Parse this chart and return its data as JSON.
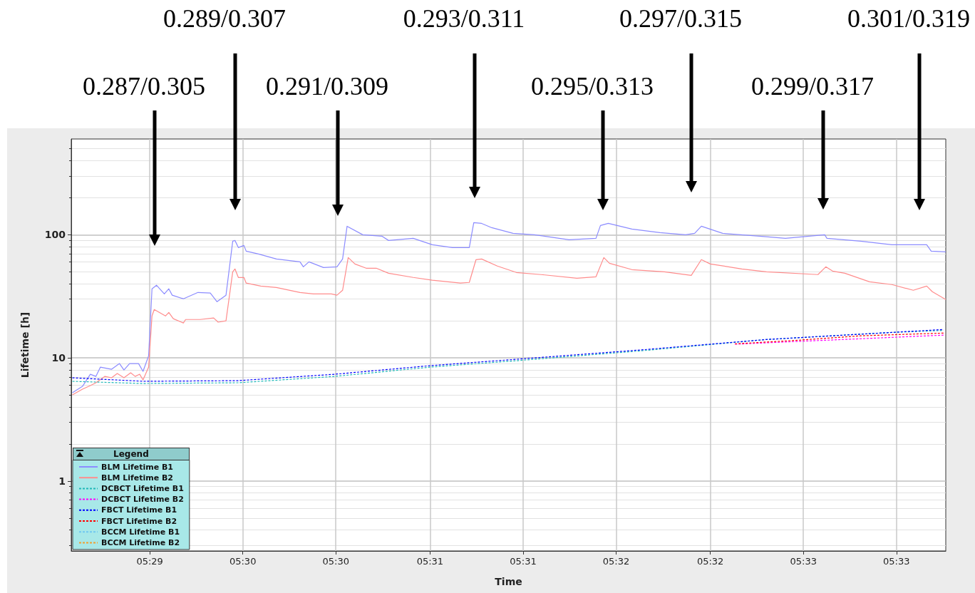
{
  "chart_data": {
    "type": "line",
    "xlabel": "Time",
    "ylabel": "Lifetime [h]",
    "legend_title": "Legend",
    "legend": "bottom left",
    "grid": true,
    "log": "y",
    "marker": "none",
    "xlim": [
      5.4808,
      5.5588
    ],
    "ylim": [
      0.27,
      600
    ],
    "yticks": [
      1,
      10,
      100
    ],
    "xticks": [
      {
        "value": 5.4878,
        "label": "05:29"
      },
      {
        "value": 5.4961,
        "label": "05:30"
      },
      {
        "value": 5.5044,
        "label": "05:30"
      },
      {
        "value": 5.5128,
        "label": "05:31"
      },
      {
        "value": 5.5211,
        "label": "05:31"
      },
      {
        "value": 5.5294,
        "label": "05:32"
      },
      {
        "value": 5.5378,
        "label": "05:32"
      },
      {
        "value": 5.5461,
        "label": "05:33"
      },
      {
        "value": 5.5544,
        "label": "05:33"
      }
    ],
    "annotations": [
      "0.287/0.305",
      "0.289/0.307",
      "0.291/0.309",
      "0.293/0.311",
      "0.295/0.313",
      "0.297/0.315",
      "0.299/0.317",
      "0.301/0.319"
    ],
    "series": [
      {
        "name": "BLM Lifetime B1",
        "color": "#8c8cff",
        "line_style": "solid",
        "x": [
          5.4809,
          5.4818,
          5.4825,
          5.483,
          5.4834,
          5.4844,
          5.4851,
          5.4855,
          5.486,
          5.4868,
          5.4872,
          5.4877,
          5.488,
          5.4884,
          5.4891,
          5.4895,
          5.4898,
          5.4908,
          5.4921,
          5.4932,
          5.4938,
          5.4946,
          5.4952,
          5.4954,
          5.4957,
          5.4962,
          5.4964,
          5.4975,
          5.4991,
          5.5012,
          5.5015,
          5.502,
          5.5033,
          5.5045,
          5.505,
          5.5054,
          5.5068,
          5.5085,
          5.5091,
          5.5113,
          5.513,
          5.5148,
          5.5163,
          5.5167,
          5.5174,
          5.5183,
          5.5202,
          5.5221,
          5.5252,
          5.5276,
          5.528,
          5.5287,
          5.5308,
          5.5333,
          5.5356,
          5.5364,
          5.537,
          5.5389,
          5.5422,
          5.5445,
          5.548,
          5.5482,
          5.5512,
          5.554,
          5.5571,
          5.5575,
          5.5588
        ],
        "values": [
          5.21,
          5.87,
          7.36,
          7.07,
          8.41,
          8.08,
          8.99,
          7.97,
          8.99,
          8.99,
          7.77,
          10.4,
          36.4,
          38.9,
          33.1,
          36.4,
          32.3,
          30.2,
          34.0,
          33.6,
          28.6,
          32.3,
          88.7,
          89.9,
          78.7,
          81.9,
          73.6,
          69.8,
          63.6,
          60.3,
          54.9,
          60.3,
          54.2,
          54.9,
          63.6,
          117.3,
          100,
          97.4,
          89.9,
          93.6,
          83.0,
          78.7,
          78.7,
          125.4,
          123.7,
          114.2,
          102.7,
          100,
          91.1,
          93.6,
          118.9,
          123.7,
          111.2,
          104.1,
          100,
          102.7,
          117.3,
          102.7,
          97.4,
          93.6,
          100,
          93.6,
          88.7,
          83.0,
          83.0,
          73.6,
          72.6
        ]
      },
      {
        "name": "BLM Lifetime B2",
        "color": "#ff8c8c",
        "line_style": "solid",
        "x": [
          5.4809,
          5.4818,
          5.4825,
          5.483,
          5.4838,
          5.4844,
          5.4849,
          5.4855,
          5.4861,
          5.4865,
          5.4869,
          5.4872,
          5.4877,
          5.488,
          5.4882,
          5.4892,
          5.4895,
          5.4899,
          5.4908,
          5.491,
          5.4923,
          5.4935,
          5.4939,
          5.4946,
          5.4952,
          5.4954,
          5.4957,
          5.4962,
          5.4964,
          5.4977,
          5.4991,
          5.5012,
          5.5024,
          5.504,
          5.5045,
          5.505,
          5.5055,
          5.5061,
          5.5071,
          5.508,
          5.5091,
          5.5113,
          5.513,
          5.5155,
          5.5163,
          5.5169,
          5.5174,
          5.5188,
          5.5205,
          5.5227,
          5.5259,
          5.5276,
          5.5283,
          5.5288,
          5.5308,
          5.5337,
          5.5361,
          5.537,
          5.5378,
          5.5406,
          5.5428,
          5.5474,
          5.5481,
          5.5487,
          5.5498,
          5.552,
          5.554,
          5.5559,
          5.5571,
          5.5576,
          5.5588
        ],
        "values": [
          5.0,
          5.57,
          5.95,
          6.28,
          7.07,
          6.89,
          7.46,
          6.89,
          7.56,
          7.07,
          7.36,
          6.62,
          8.41,
          21.9,
          24.7,
          21.9,
          23.4,
          20.8,
          19.2,
          20.5,
          20.5,
          21.1,
          19.5,
          20.0,
          50.0,
          52.8,
          45.0,
          45.0,
          40.5,
          38.3,
          37.3,
          34.0,
          33.1,
          33.1,
          32.3,
          35.4,
          65.3,
          57.9,
          53.5,
          53.5,
          48.7,
          45.0,
          42.7,
          40.5,
          41.0,
          62.8,
          63.6,
          55.7,
          49.4,
          47.5,
          44.4,
          45.6,
          65.3,
          58.7,
          52.1,
          50.0,
          46.8,
          62.8,
          57.9,
          52.8,
          50.0,
          47.5,
          54.9,
          50.7,
          48.7,
          41.5,
          39.4,
          35.4,
          38.3,
          34.5,
          29.8
        ]
      },
      {
        "name": "DCBCT Lifetime B1",
        "color": "#20b8b8",
        "line_style": "dashed",
        "x": [
          5.4809,
          5.4872,
          5.4957,
          5.5043,
          5.5128,
          5.5205,
          5.5316,
          5.5428,
          5.554,
          5.5586
        ],
        "values": [
          6.45,
          6.19,
          6.28,
          7.07,
          8.41,
          9.48,
          11.4,
          14.1,
          16.1,
          16.7
        ]
      },
      {
        "name": "DCBCT Lifetime B2",
        "color": "#ff00ff",
        "line_style": "dashed",
        "x": [
          5.54,
          5.5456,
          5.5512,
          5.5586
        ],
        "values": [
          12.9,
          13.6,
          14.3,
          15.3
        ]
      },
      {
        "name": "FBCT Lifetime B1",
        "color": "#0000ff",
        "line_style": "dashed",
        "x": [
          5.4809,
          5.4872,
          5.4957,
          5.5043,
          5.5128,
          5.5205,
          5.5316,
          5.5428,
          5.554,
          5.5586
        ],
        "values": [
          6.89,
          6.45,
          6.53,
          7.36,
          8.64,
          9.74,
          11.6,
          14.1,
          16.1,
          17.0
        ]
      },
      {
        "name": "FBCT Lifetime B2",
        "color": "#ff0000",
        "line_style": "dashed",
        "x": [
          5.54,
          5.5456,
          5.5512,
          5.5586
        ],
        "values": [
          13.0,
          13.9,
          15.1,
          15.9
        ]
      },
      {
        "name": "BCCM Lifetime B1",
        "color": "#70c8f0",
        "line_style": "dashed"
      },
      {
        "name": "BCCM Lifetime B2",
        "color": "#f0a030",
        "line_style": "dashed"
      }
    ]
  }
}
